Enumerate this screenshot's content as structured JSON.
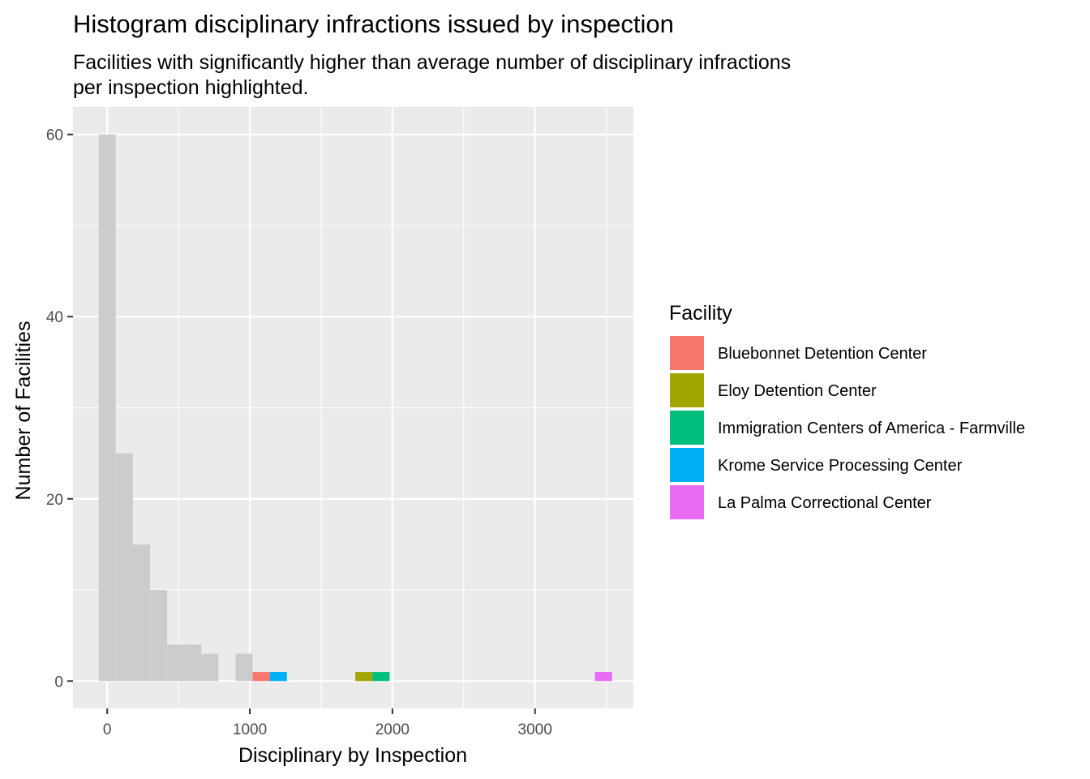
{
  "chart_data": {
    "type": "bar",
    "title": "Histogram disciplinary infractions issued by inspection",
    "subtitle_lines": [
      "Facilities with significantly higher than average number of disciplinary infractions",
      "per inspection highlighted."
    ],
    "xlabel": "Disciplinary by Inspection",
    "ylabel": "Number of Facilities",
    "xlim": [
      -240,
      3690
    ],
    "ylim": [
      -3,
      63
    ],
    "x_ticks": [
      0,
      1000,
      2000,
      3000
    ],
    "x_tick_labels": [
      "0",
      "1000",
      "2000",
      "3000"
    ],
    "y_ticks": [
      0,
      20,
      40,
      60
    ],
    "y_tick_labels": [
      "0",
      "20",
      "40",
      "60"
    ],
    "grid": true,
    "legend_position": "right",
    "legend_title": "Facility",
    "base_bins": [
      {
        "x0": -60,
        "x1": 60,
        "count": 60
      },
      {
        "x0": 60,
        "x1": 180,
        "count": 25
      },
      {
        "x0": 180,
        "x1": 300,
        "count": 15
      },
      {
        "x0": 300,
        "x1": 420,
        "count": 10
      },
      {
        "x0": 420,
        "x1": 540,
        "count": 4
      },
      {
        "x0": 540,
        "x1": 660,
        "count": 4
      },
      {
        "x0": 660,
        "x1": 780,
        "count": 3
      },
      {
        "x0": 900,
        "x1": 1020,
        "count": 3
      }
    ],
    "base_color": "#cccccc",
    "series": [
      {
        "name": "Bluebonnet Detention Center",
        "color": "#F8766D",
        "x0": 1020,
        "x1": 1140,
        "count": 1
      },
      {
        "name": "Eloy Detention Center",
        "color": "#A3A500",
        "x0": 1740,
        "x1": 1860,
        "count": 1
      },
      {
        "name": "Immigration Centers of America - Farmville",
        "color": "#00BF7D",
        "x0": 1860,
        "x1": 1980,
        "count": 1
      },
      {
        "name": "Krome Service Processing Center",
        "color": "#00B0F6",
        "x0": 1140,
        "x1": 1260,
        "count": 1
      },
      {
        "name": "La Palma Correctional Center",
        "color": "#E76BF3",
        "x0": 3420,
        "x1": 3540,
        "count": 1
      }
    ]
  }
}
